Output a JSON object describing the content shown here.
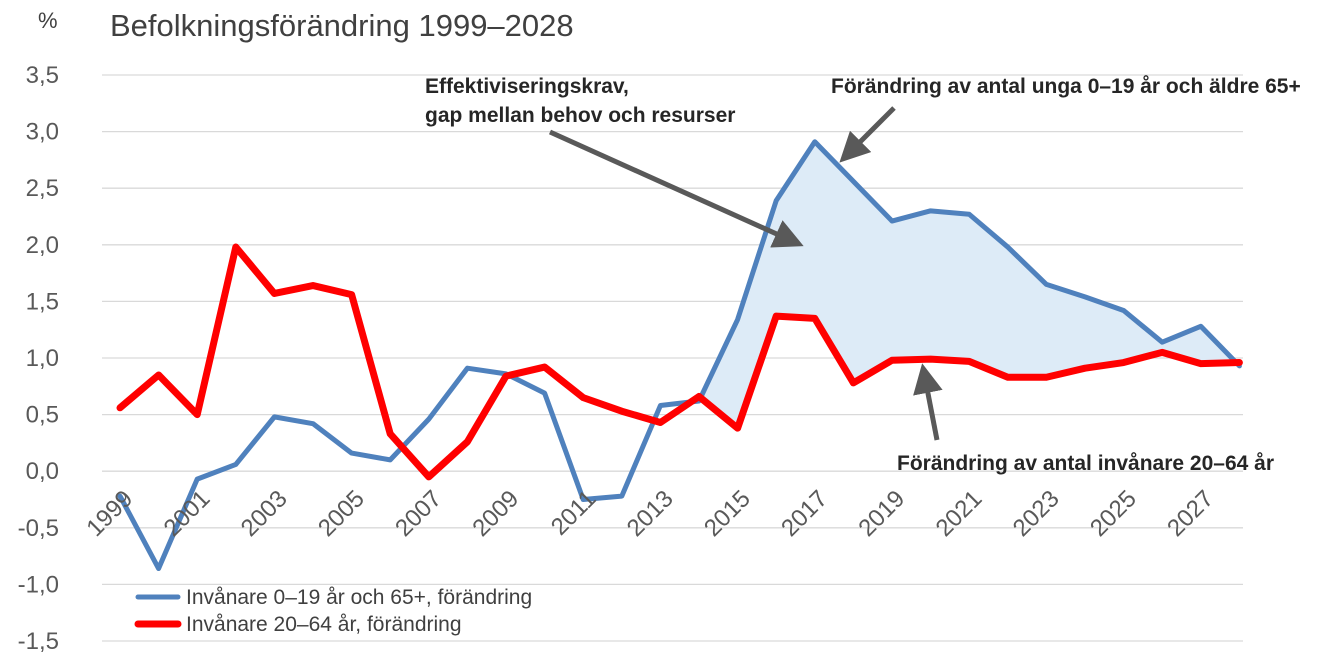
{
  "chart_data": {
    "type": "line",
    "title": "Befolkningsförändring 1999–2028",
    "ylabel": "%",
    "xlabel": "",
    "ylim": [
      -1.5,
      3.5
    ],
    "yticks": [
      3.5,
      3.0,
      2.5,
      2.0,
      1.5,
      1.0,
      0.5,
      0.0,
      -0.5,
      -1.0,
      -1.5
    ],
    "ytick_labels": [
      "3,5",
      "3,0",
      "2,5",
      "2,0",
      "1,5",
      "1,0",
      "0,5",
      "0,0",
      "-0,5",
      "-1,0",
      "-1,5"
    ],
    "x": [
      1999,
      2000,
      2001,
      2002,
      2003,
      2004,
      2005,
      2006,
      2007,
      2008,
      2009,
      2010,
      2011,
      2012,
      2013,
      2014,
      2015,
      2016,
      2017,
      2018,
      2019,
      2020,
      2021,
      2022,
      2023,
      2024,
      2025,
      2026,
      2027,
      2028
    ],
    "xtick_labels": [
      "1999",
      "2001",
      "2003",
      "2005",
      "2007",
      "2009",
      "2011",
      "2013",
      "2015",
      "2017",
      "2019",
      "2021",
      "2023",
      "2025",
      "2027"
    ],
    "grid": true,
    "legend_position": "bottom-left",
    "series": [
      {
        "name": "Invånare 0–19 år och 65+, förändring",
        "color": "#4f81bd",
        "values": [
          -0.22,
          -0.86,
          -0.07,
          0.06,
          0.48,
          0.42,
          0.16,
          0.1,
          0.46,
          0.91,
          0.86,
          0.69,
          -0.25,
          -0.22,
          0.58,
          0.62,
          1.34,
          2.39,
          2.91,
          2.56,
          2.21,
          2.3,
          2.27,
          1.98,
          1.65,
          1.54,
          1.42,
          1.14,
          1.28,
          0.93
        ]
      },
      {
        "name": "Invånare 20–64 år, förändring",
        "color": "#ff0000",
        "values": [
          0.56,
          0.85,
          0.5,
          1.98,
          1.57,
          1.64,
          1.56,
          0.33,
          -0.05,
          0.26,
          0.84,
          0.92,
          0.65,
          0.53,
          0.43,
          0.66,
          0.38,
          1.37,
          1.35,
          0.78,
          0.98,
          0.99,
          0.97,
          0.83,
          0.83,
          0.91,
          0.96,
          1.05,
          0.95,
          0.96
        ]
      }
    ],
    "fill_between": {
      "color": "#ddebf7",
      "from_year": 2014,
      "to_year": 2028
    },
    "annotations": [
      {
        "lines": [
          "Effektiviseringskrav,",
          "gap mellan behov och resurser"
        ]
      },
      {
        "lines": [
          "Förändring av antal unga 0–19 år och äldre 65+"
        ]
      },
      {
        "lines": [
          "Förändring av antal invånare 20–64 år"
        ]
      }
    ],
    "arrow_color": "#595959"
  }
}
